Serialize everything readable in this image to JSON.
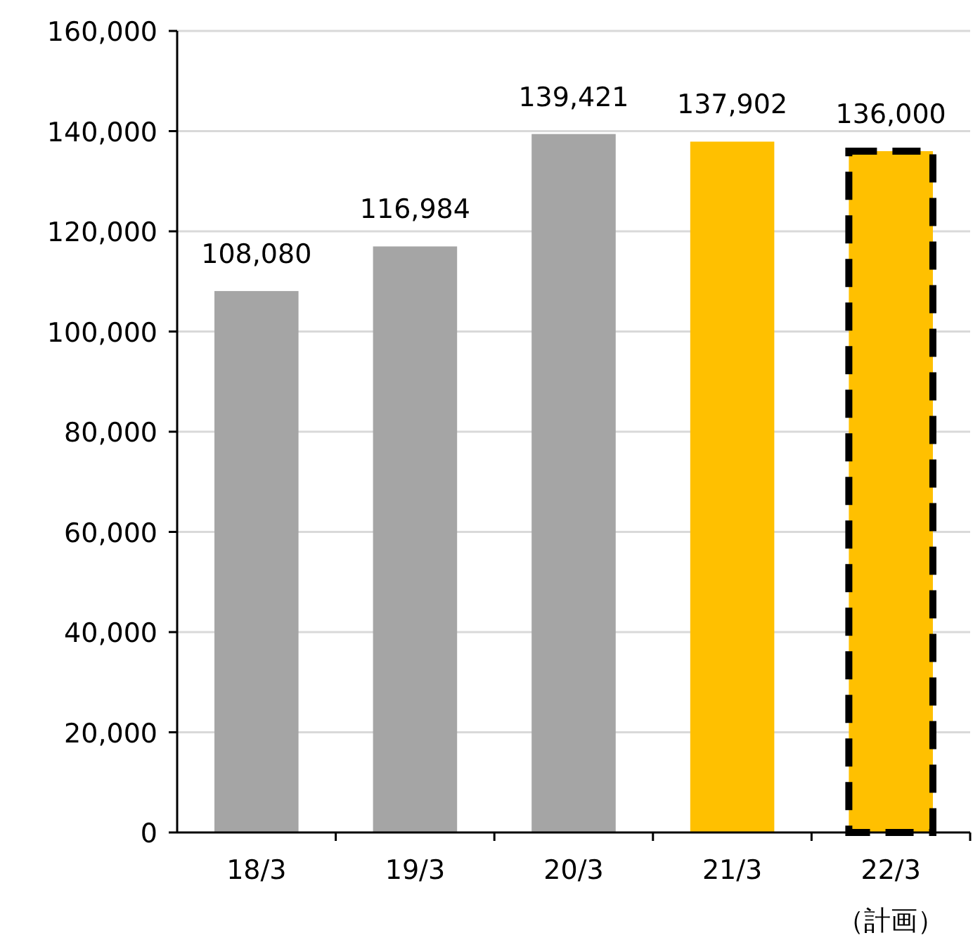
{
  "chart_data": {
    "type": "bar",
    "stacked": true,
    "categories": [
      "18/3",
      "19/3",
      "20/3",
      "21/3",
      "22/3\n（計画）"
    ],
    "series": [
      {
        "colors": [
          "#a5a5a5",
          "#a5a5a5",
          "#a5a5a5",
          "#ffc000",
          null
        ],
        "values": [
          108080,
          116984,
          139421,
          137902,
          null
        ],
        "value_labels": [
          "108,080",
          "116,984",
          "139,421",
          "137,902",
          null
        ]
      },
      {
        "color": "#ffc000",
        "line_style": "dashed",
        "values": [
          null,
          null,
          null,
          null,
          136000
        ],
        "value_labels": [
          null,
          null,
          null,
          null,
          "136,000"
        ]
      }
    ],
    "ylim": [
      0,
      160000
    ],
    "yticks": [
      {
        "value": 0,
        "label": "0"
      },
      {
        "value": 20000,
        "label": "20,000"
      },
      {
        "value": 40000,
        "label": "40,000"
      },
      {
        "value": 60000,
        "label": "60,000"
      },
      {
        "value": 80000,
        "label": "80,000"
      },
      {
        "value": 100000,
        "label": "100,000"
      },
      {
        "value": 120000,
        "label": "120,000"
      },
      {
        "value": 140000,
        "label": "140,000"
      },
      {
        "value": 160000,
        "label": "160,000"
      }
    ],
    "grid": "y"
  }
}
